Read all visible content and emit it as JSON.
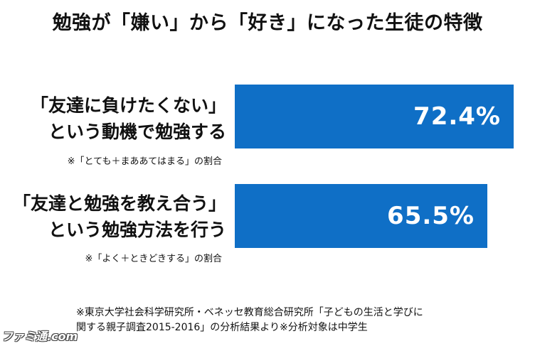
{
  "chart_data": {
    "type": "bar",
    "orientation": "horizontal",
    "title": "勉強が「嫌い」から「好き」になった生徒の特徴",
    "categories": [
      "「友達に負けたくない」という動機で勉強する",
      "「友達と勉強を教え合う」という勉強方法を行う"
    ],
    "values": [
      72.4,
      65.5
    ],
    "value_labels": [
      "72.4%",
      "65.5%"
    ],
    "xlim": [
      0,
      100
    ],
    "grid": false,
    "bar_color": "#0f6fc6",
    "rows": [
      {
        "label_line1": "「友達に負けたくない」",
        "label_line2": "という動機で勉強する",
        "note": "※「とても＋まああてはまる」の割合"
      },
      {
        "label_line1": "「友達と勉強を教え合う」",
        "label_line2": "という勉強方法を行う",
        "note": "※「よく＋ときどきする」の割合"
      }
    ],
    "source_line1": "※東京大学社会科学研究所・ベネッセ教育総合研究所「子どもの生活と学びに",
    "source_line2": "関する親子調査2015-2016」の分析結果より※分析対象は中学生"
  },
  "watermark": "ファミ通.com"
}
